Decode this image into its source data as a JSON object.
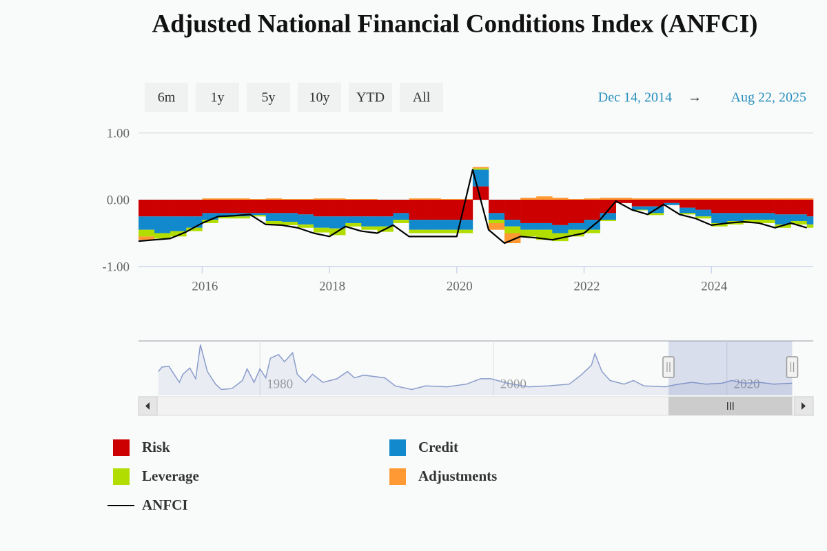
{
  "chart_data": [
    {
      "type": "bar",
      "stacked": true,
      "title": "Adjusted National Financial Conditions Index (ANFCI)",
      "x": [
        2015.0,
        2015.25,
        2015.5,
        2015.75,
        2016.0,
        2016.25,
        2016.5,
        2016.75,
        2017.0,
        2017.25,
        2017.5,
        2017.75,
        2018.0,
        2018.25,
        2018.5,
        2018.75,
        2019.0,
        2019.25,
        2019.5,
        2019.75,
        2020.0,
        2020.25,
        2020.5,
        2020.75,
        2021.0,
        2021.25,
        2021.5,
        2021.75,
        2022.0,
        2022.25,
        2022.5,
        2022.75,
        2023.0,
        2023.25,
        2023.5,
        2023.75,
        2024.0,
        2024.25,
        2024.5,
        2024.75,
        2025.0,
        2025.25,
        2025.5
      ],
      "xlim": [
        2015.0,
        2025.6
      ],
      "xticks": [
        2016,
        2018,
        2020,
        2022,
        2024
      ],
      "ylim": [
        -1,
        1
      ],
      "yticks": [
        {
          "value": 1,
          "label": "1.00"
        },
        {
          "value": 0,
          "label": "0.00"
        },
        {
          "value": -1,
          "label": "-1.00"
        }
      ],
      "grid": true,
      "series": [
        {
          "name": "Risk",
          "type": "bar",
          "color": "#cc0000",
          "values": [
            -0.25,
            -0.25,
            -0.25,
            -0.25,
            -0.2,
            -0.2,
            -0.2,
            -0.2,
            -0.2,
            -0.2,
            -0.22,
            -0.25,
            -0.25,
            -0.25,
            -0.25,
            -0.25,
            -0.2,
            -0.3,
            -0.3,
            -0.3,
            -0.3,
            0.2,
            -0.2,
            -0.3,
            -0.35,
            -0.35,
            -0.38,
            -0.35,
            -0.3,
            -0.2,
            -0.05,
            -0.1,
            -0.1,
            -0.05,
            -0.12,
            -0.15,
            -0.2,
            -0.2,
            -0.2,
            -0.2,
            -0.22,
            -0.22,
            -0.25
          ]
        },
        {
          "name": "Credit",
          "type": "bar",
          "color": "#1189cc",
          "values": [
            -0.2,
            -0.25,
            -0.22,
            -0.17,
            -0.1,
            -0.05,
            -0.05,
            -0.03,
            -0.12,
            -0.13,
            -0.15,
            -0.17,
            -0.18,
            -0.1,
            -0.15,
            -0.15,
            -0.1,
            -0.15,
            -0.15,
            -0.15,
            -0.15,
            0.25,
            -0.1,
            -0.1,
            -0.1,
            -0.1,
            -0.12,
            -0.1,
            -0.15,
            -0.1,
            0,
            -0.05,
            -0.1,
            -0.03,
            -0.08,
            -0.1,
            -0.15,
            -0.12,
            -0.1,
            -0.1,
            -0.15,
            -0.1,
            -0.12
          ]
        },
        {
          "name": "Leverage",
          "type": "bar",
          "color": "#b2dd00",
          "values": [
            -0.1,
            -0.08,
            -0.08,
            -0.05,
            -0.05,
            -0.03,
            -0.03,
            -0.02,
            -0.05,
            -0.05,
            -0.05,
            -0.07,
            -0.1,
            -0.05,
            -0.05,
            -0.08,
            -0.05,
            -0.05,
            -0.05,
            -0.05,
            -0.05,
            0.02,
            -0.05,
            -0.1,
            -0.1,
            -0.15,
            -0.12,
            -0.1,
            -0.05,
            -0.02,
            0,
            -0.01,
            -0.03,
            0,
            -0.02,
            -0.03,
            -0.05,
            -0.05,
            -0.05,
            -0.05,
            -0.05,
            -0.05,
            -0.05
          ]
        },
        {
          "name": "Adjustments",
          "type": "bar",
          "color": "#ff9933",
          "values": [
            -0.05,
            0,
            0,
            0,
            0.02,
            0.02,
            0.02,
            0.01,
            0.02,
            0.01,
            0.01,
            0.02,
            0.02,
            0.01,
            0.01,
            0,
            0,
            0.02,
            0.02,
            0.01,
            0.01,
            0.02,
            -0.1,
            -0.15,
            0.03,
            0.05,
            0.03,
            0.01,
            0.02,
            0.03,
            0.03,
            0.02,
            0.02,
            0.02,
            0.02,
            0.02,
            0.02,
            0.02,
            0.02,
            0.02,
            0.02,
            0.02,
            0.02
          ]
        },
        {
          "name": "ANFCI",
          "type": "line",
          "color": "#000000",
          "values": [
            -0.62,
            -0.6,
            -0.58,
            -0.48,
            -0.35,
            -0.25,
            -0.24,
            -0.22,
            -0.37,
            -0.38,
            -0.42,
            -0.5,
            -0.55,
            -0.4,
            -0.47,
            -0.5,
            -0.38,
            -0.55,
            -0.55,
            -0.55,
            -0.55,
            0.45,
            -0.45,
            -0.65,
            -0.55,
            -0.57,
            -0.6,
            -0.55,
            -0.5,
            -0.3,
            -0.02,
            -0.15,
            -0.22,
            -0.07,
            -0.22,
            -0.28,
            -0.38,
            -0.35,
            -0.33,
            -0.35,
            -0.42,
            -0.35,
            -0.42
          ]
        }
      ]
    },
    {
      "type": "line",
      "x": [
        1971.3,
        1971.6,
        1972.2,
        1973.1,
        1973.4,
        1974.0,
        1974.5,
        1974.9,
        1975.5,
        1976.2,
        1976.7,
        1977.6,
        1978.5,
        1978.9,
        1979.5,
        1980.0,
        1980.5,
        1980.9,
        1981.6,
        1982.1,
        1982.8,
        1983.2,
        1983.9,
        1984.5,
        1985.4,
        1986.6,
        1987.5,
        1988.1,
        1988.9,
        1990.7,
        1991.6,
        1993.0,
        1994.2,
        1996.0,
        1997.7,
        1998.9,
        1999.8,
        2001.2,
        2003.0,
        2004.7,
        2006.5,
        2007.5,
        2008.4,
        2008.7,
        2009.3,
        2010.0,
        2011.2,
        2012.0,
        2012.9,
        2014.7,
        2015.9,
        2017.0,
        2018.2,
        2019.6,
        2020.4,
        2021.6,
        2022.8,
        2024.0,
        2025.6
      ],
      "values": [
        1.5,
        2.0,
        2.1,
        0.3,
        1.2,
        1.9,
        0.7,
        4.5,
        1.5,
        0.1,
        -0.5,
        -0.4,
        0.5,
        1.8,
        0.3,
        1.8,
        0.8,
        3.0,
        3.4,
        2.6,
        3.6,
        1.2,
        0.3,
        1.2,
        0.3,
        0.7,
        1.5,
        0.8,
        1.1,
        0.8,
        -0.1,
        -0.5,
        -0.1,
        -0.2,
        0.1,
        0.7,
        0.7,
        0.2,
        -0.2,
        -0.1,
        0.1,
        1.1,
        2.2,
        3.5,
        1.5,
        0.5,
        0.1,
        0.5,
        -0.1,
        -0.2,
        0.1,
        0.3,
        0.1,
        0.2,
        0.5,
        0.2,
        0.3,
        0.1,
        0.2
      ],
      "xlim": [
        1969.6,
        2027.4
      ],
      "xticks": [
        1980,
        2000,
        2020
      ],
      "ylim": [
        -1,
        5
      ],
      "color": "#8a9ccc"
    }
  ],
  "range_selector": {
    "buttons": [
      "6m",
      "1y",
      "5y",
      "10y",
      "YTD",
      "All"
    ],
    "from": "Dec 14, 2014",
    "arrow": "→",
    "to": "Aug 22, 2025"
  }
}
